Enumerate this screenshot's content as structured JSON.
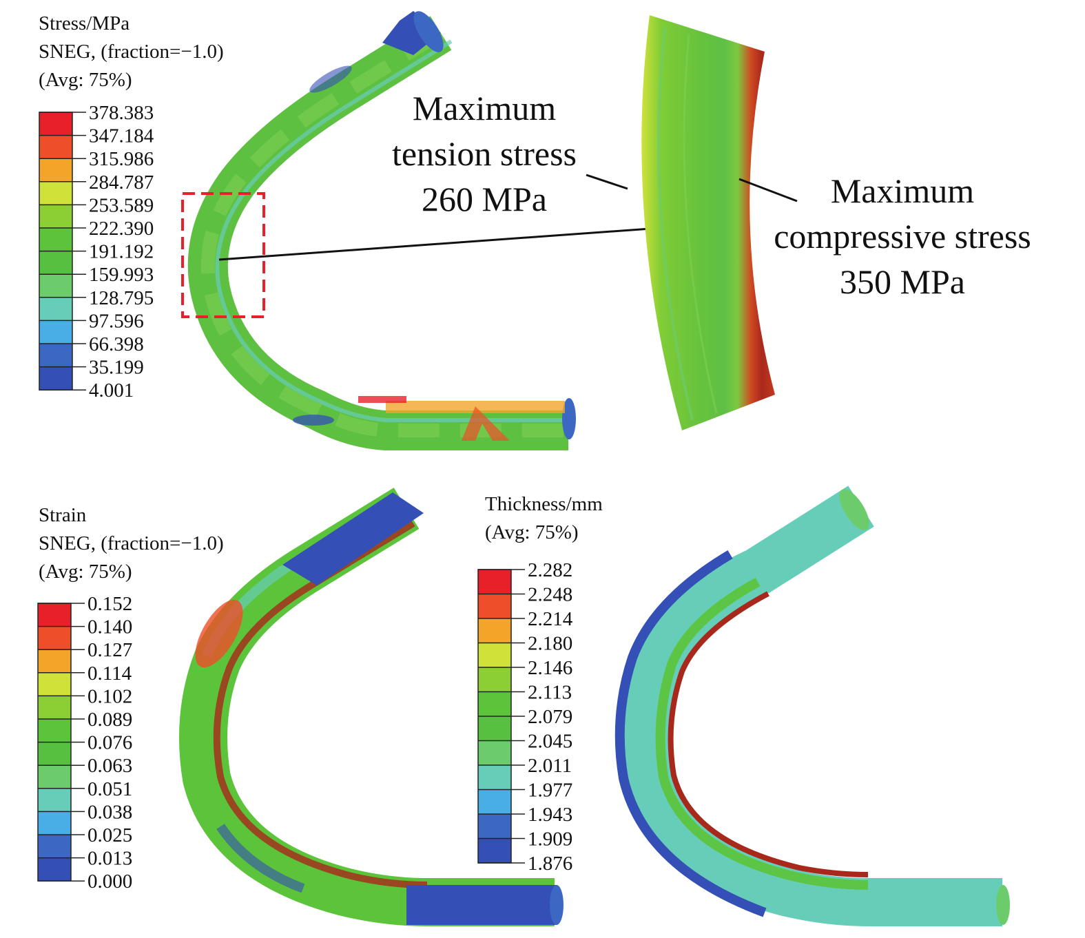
{
  "stress_panel": {
    "legend": {
      "title_lines": [
        "Stress/MPa",
        "SNEG, (fraction=−1.0)",
        "(Avg: 75%)"
      ],
      "values": [
        "378.383",
        "347.184",
        "315.986",
        "284.787",
        "253.589",
        "222.390",
        "191.192",
        "159.993",
        "128.795",
        "97.596",
        "66.398",
        "35.199",
        "4.001"
      ]
    },
    "tension_callout": [
      "Maximum",
      "tension stress",
      "260 MPa"
    ],
    "compressive_callout": [
      "Maximum",
      "compressive stress",
      "350 MPa"
    ]
  },
  "strain_panel": {
    "legend": {
      "title_lines": [
        "Strain",
        "SNEG, (fraction=−1.0)",
        "(Avg: 75%)"
      ],
      "values": [
        "0.152",
        "0.140",
        "0.127",
        "0.114",
        "0.102",
        "0.089",
        "0.076",
        "0.063",
        "0.051",
        "0.038",
        "0.025",
        "0.013",
        "0.000"
      ]
    }
  },
  "thickness_panel": {
    "legend": {
      "title_lines": [
        "Thickness/mm",
        "(Avg: 75%)"
      ],
      "values": [
        "2.282",
        "2.248",
        "2.214",
        "2.180",
        "2.146",
        "2.113",
        "2.079",
        "2.045",
        "2.011",
        "1.977",
        "1.943",
        "1.909",
        "1.876"
      ]
    }
  },
  "colormap": [
    "#e8202a",
    "#ee4e2a",
    "#f3a52a",
    "#cfe23a",
    "#8ccf34",
    "#5cc43a",
    "#58c040",
    "#6ccc6c",
    "#66cdb8",
    "#4aaee6",
    "#3c68c4",
    "#3450b6"
  ]
}
